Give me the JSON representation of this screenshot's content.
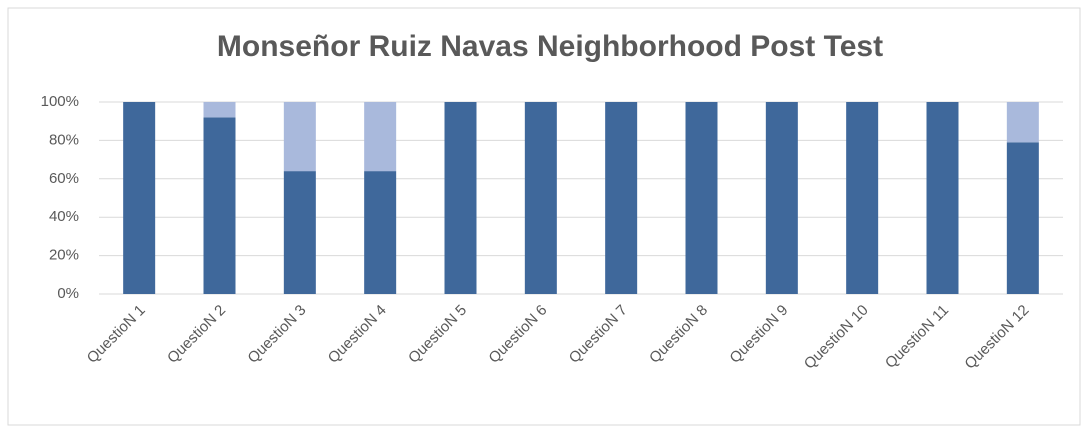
{
  "chart_data": {
    "type": "stacked_bar",
    "title": "Monseñor Ruiz Navas Neighborhood Post Test",
    "categories": [
      "QuestioN 1",
      "QuestioN 2",
      "QuestioN 3",
      "QuestioN 4",
      "QuestioN 5",
      "QuestioN 6",
      "QuestioN 7",
      "QuestioN 8",
      "QuestioN 9",
      "QuestioN 10",
      "QuestioN 11",
      "QuestioN 12"
    ],
    "series": [
      {
        "color": "#3f689b",
        "values": [
          100,
          92,
          64,
          64,
          100,
          100,
          100,
          100,
          100,
          100,
          100,
          79
        ]
      },
      {
        "color": "#a9b9dc",
        "values": [
          0,
          8,
          36,
          36,
          0,
          0,
          0,
          0,
          0,
          0,
          0,
          21
        ]
      }
    ],
    "ylim": [
      0,
      100
    ],
    "yticks": [
      {
        "value": 0,
        "label": "0%"
      },
      {
        "value": 20,
        "label": "20%"
      },
      {
        "value": 40,
        "label": "40%"
      },
      {
        "value": 60,
        "label": "60%"
      },
      {
        "value": 80,
        "label": "80%"
      },
      {
        "value": 100,
        "label": "100%"
      }
    ],
    "grid": true
  }
}
